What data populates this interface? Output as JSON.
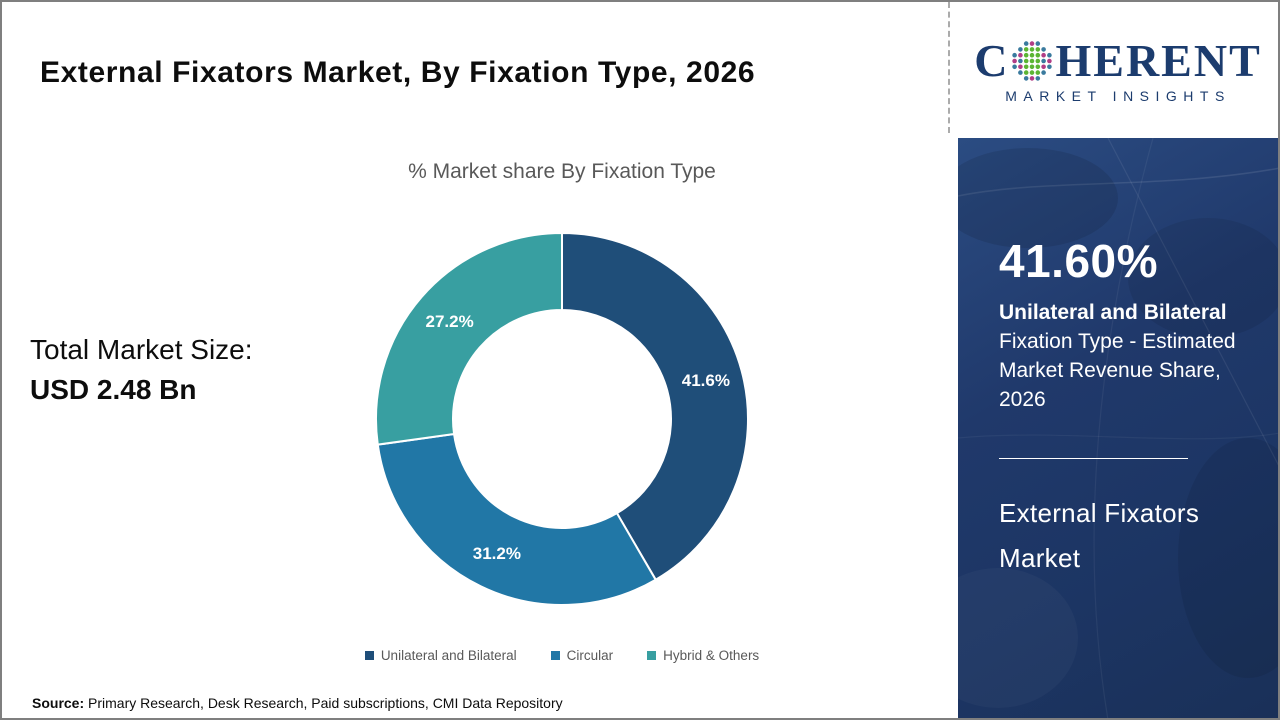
{
  "header": {
    "title": "External Fixators Market, By Fixation Type, 2026"
  },
  "logo": {
    "brand_left": "C",
    "brand_right": "HERENT",
    "brand_sub": "MARKET INSIGHTS",
    "brand_color": "#1c3c6e",
    "globe_colors": [
      "#5cb533",
      "#3a7a9e",
      "#b13d86"
    ]
  },
  "left_stat": {
    "label": "Total Market Size:",
    "value": "USD 2.48 Bn"
  },
  "chart_data": {
    "type": "pie",
    "donut": true,
    "title": "% Market share By Fixation Type",
    "categories": [
      "Unilateral and Bilateral",
      "Circular",
      "Hybrid & Others"
    ],
    "values": [
      41.6,
      31.2,
      27.2
    ],
    "labels": [
      "41.6%",
      "31.2%",
      "27.2%"
    ],
    "colors": [
      "#1f4e79",
      "#2177a6",
      "#389fa1"
    ],
    "start_angle_deg": 0,
    "direction": "clockwise",
    "legend_position": "bottom",
    "slice_label_color": "#ffffff"
  },
  "side_panel": {
    "stat_value": "41.60%",
    "stat_label_bold": "Unilateral and Bilateral",
    "stat_label_rest": "Fixation Type - Estimated Market Revenue Share, 2026",
    "market_name": "External Fixators Market",
    "background_color": "#20396b"
  },
  "footer": {
    "source_label": "Source:",
    "source_text": " Primary Research, Desk Research, Paid subscriptions, CMI Data Repository"
  }
}
